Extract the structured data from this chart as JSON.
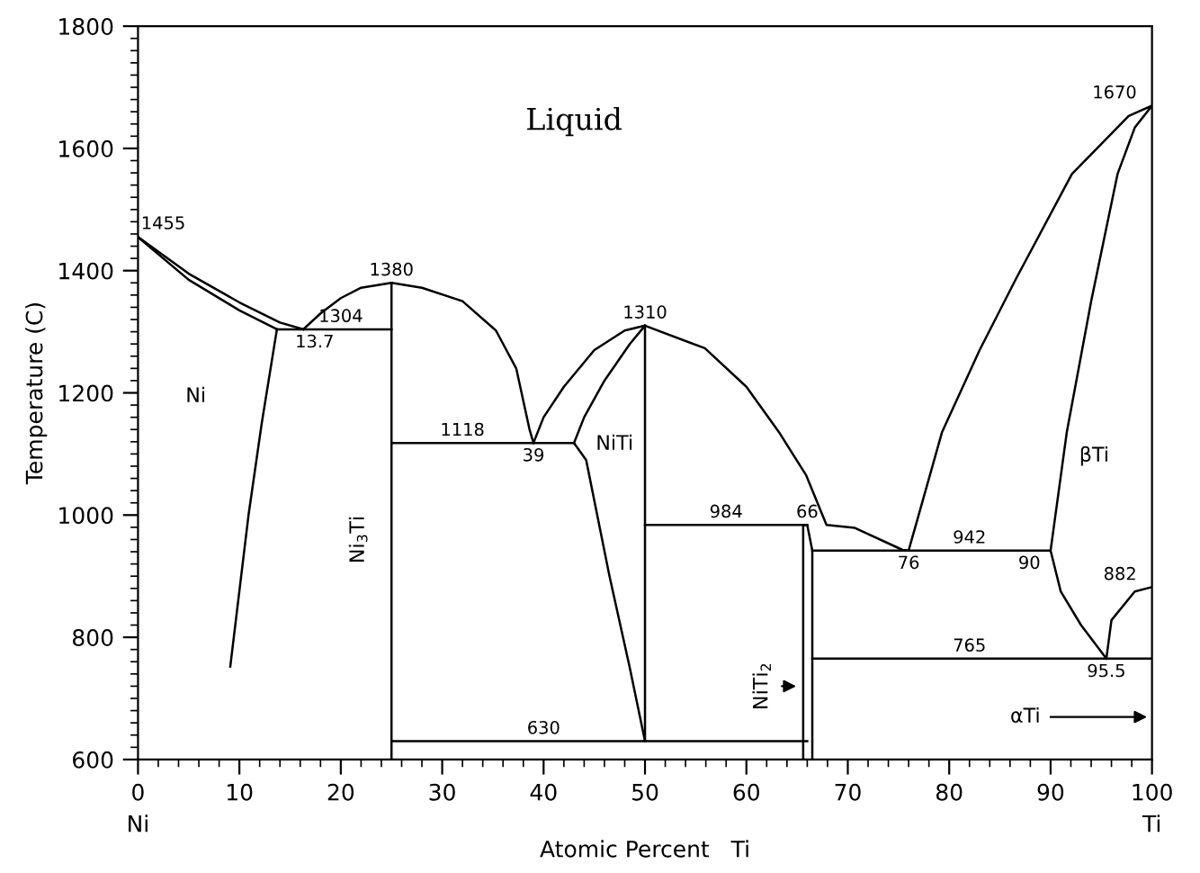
{
  "chart_data": {
    "type": "line",
    "xlabel": "Atomic Percent   Ti",
    "ylabel": "Temperature (C)",
    "xlim": [
      0,
      100
    ],
    "ylim": [
      600,
      1800
    ],
    "xticks": [
      0,
      10,
      20,
      30,
      40,
      50,
      60,
      70,
      80,
      90,
      100
    ],
    "yticks": [
      600,
      800,
      1000,
      1200,
      1400,
      1600,
      1800
    ],
    "grid": false,
    "legend": false,
    "marker": "none",
    "line_style": "solid",
    "series": [
      {
        "color": "#000000",
        "x": [
          0,
          5,
          10,
          14,
          16.3
        ],
        "values": [
          1455,
          1395,
          1348,
          1315,
          1304
        ]
      },
      {
        "color": "#000000",
        "x": [
          0,
          5,
          10,
          13.7
        ],
        "values": [
          1455,
          1385,
          1335,
          1304
        ]
      },
      {
        "color": "#000000",
        "x": [
          13.7,
          12.2,
          10.9,
          9.1
        ],
        "values": [
          1304,
          1150,
          1000,
          752
        ]
      },
      {
        "color": "#000000",
        "x": [
          13.7,
          25
        ],
        "values": [
          1304,
          1304
        ]
      },
      {
        "color": "#000000",
        "x": [
          16.3,
          18,
          20,
          22,
          25,
          28,
          32,
          35.3,
          37.3,
          38.6,
          39
        ],
        "values": [
          1304,
          1330,
          1355,
          1372,
          1380,
          1372,
          1350,
          1302,
          1240,
          1141,
          1118
        ]
      },
      {
        "color": "#000000",
        "x": [
          25,
          25
        ],
        "values": [
          600,
          1380
        ]
      },
      {
        "color": "#000000",
        "x": [
          25,
          43
        ],
        "values": [
          1118,
          1118
        ]
      },
      {
        "color": "#000000",
        "x": [
          39,
          40,
          42,
          45,
          48,
          50,
          55.9,
          60,
          63.2,
          65.9,
          67.9,
          70.7,
          75.4,
          76
        ],
        "values": [
          1118,
          1160,
          1210,
          1270,
          1302,
          1310,
          1273,
          1210,
          1136,
          1065,
          984,
          979,
          943,
          942
        ]
      },
      {
        "color": "#000000",
        "x": [
          43,
          44,
          46,
          48.5,
          50
        ],
        "values": [
          1118,
          1160,
          1220,
          1280,
          1310
        ]
      },
      {
        "color": "#000000",
        "x": [
          43,
          44.2,
          46.5,
          48.5,
          50
        ],
        "values": [
          1118,
          1090,
          900,
          750,
          630
        ]
      },
      {
        "color": "#000000",
        "x": [
          50,
          50
        ],
        "values": [
          630,
          1310
        ]
      },
      {
        "color": "#000000",
        "x": [
          50,
          66
        ],
        "values": [
          984,
          984
        ]
      },
      {
        "color": "#000000",
        "x": [
          25,
          66
        ],
        "values": [
          630,
          630
        ]
      },
      {
        "color": "#000000",
        "x": [
          65.6,
          65.6,
          66,
          66.5,
          66.5
        ],
        "values": [
          600,
          984,
          984,
          942,
          600
        ]
      },
      {
        "color": "#000000",
        "x": [
          66.5,
          100
        ],
        "values": [
          765,
          765
        ]
      },
      {
        "color": "#000000",
        "x": [
          66.5,
          90,
          91.6,
          94,
          96.6,
          98.3,
          100,
          97.7,
          92.1,
          86.6,
          83,
          79.3,
          76
        ],
        "values": [
          942,
          942,
          1136,
          1350,
          1558,
          1634,
          1670,
          1653,
          1558,
          1387,
          1270,
          1136,
          942
        ]
      },
      {
        "color": "#000000",
        "x": [
          90,
          91,
          93,
          95.5
        ],
        "values": [
          942,
          875,
          820,
          765
        ]
      },
      {
        "color": "#000000",
        "x": [
          95.5,
          96,
          98.3,
          100
        ],
        "values": [
          765,
          828,
          875,
          882
        ]
      }
    ],
    "annotations": [
      "Liquid",
      {
        "text": "1455",
        "x": 0.3,
        "y": 1462
      },
      {
        "text": "1380",
        "x": 25,
        "y": 1386
      },
      {
        "text": "1304",
        "x": 20,
        "y": 1310
      },
      {
        "text": "13.7",
        "x": 15.5,
        "y": 1296
      },
      "Ni",
      {
        "text": "1118",
        "x": 32,
        "y": 1124
      },
      {
        "text": "39",
        "x": 39,
        "y": 1110
      },
      {
        "text": "1310",
        "x": 50,
        "y": 1316
      },
      "NiTi",
      {
        "text": "984",
        "x": 58,
        "y": 990
      },
      {
        "text": "66",
        "x": 66,
        "y": 990
      },
      {
        "text": "76",
        "x": 76,
        "y": 934
      },
      {
        "text": "942",
        "x": 82,
        "y": 948
      },
      {
        "text": "90",
        "x": 89,
        "y": 934
      },
      "βTi",
      {
        "text": "1670",
        "x": 98.5,
        "y": 1676
      },
      {
        "text": "882",
        "x": 98.5,
        "y": 888
      },
      {
        "text": "765",
        "x": 82,
        "y": 771
      },
      {
        "text": "95.5",
        "x": 95.5,
        "y": 757
      },
      {
        "text": "630",
        "x": 40,
        "y": 636
      },
      "αTi",
      "Ni$_{3}$Ti",
      "NiTi$_{2}$",
      "Ni",
      "Ti"
    ]
  }
}
